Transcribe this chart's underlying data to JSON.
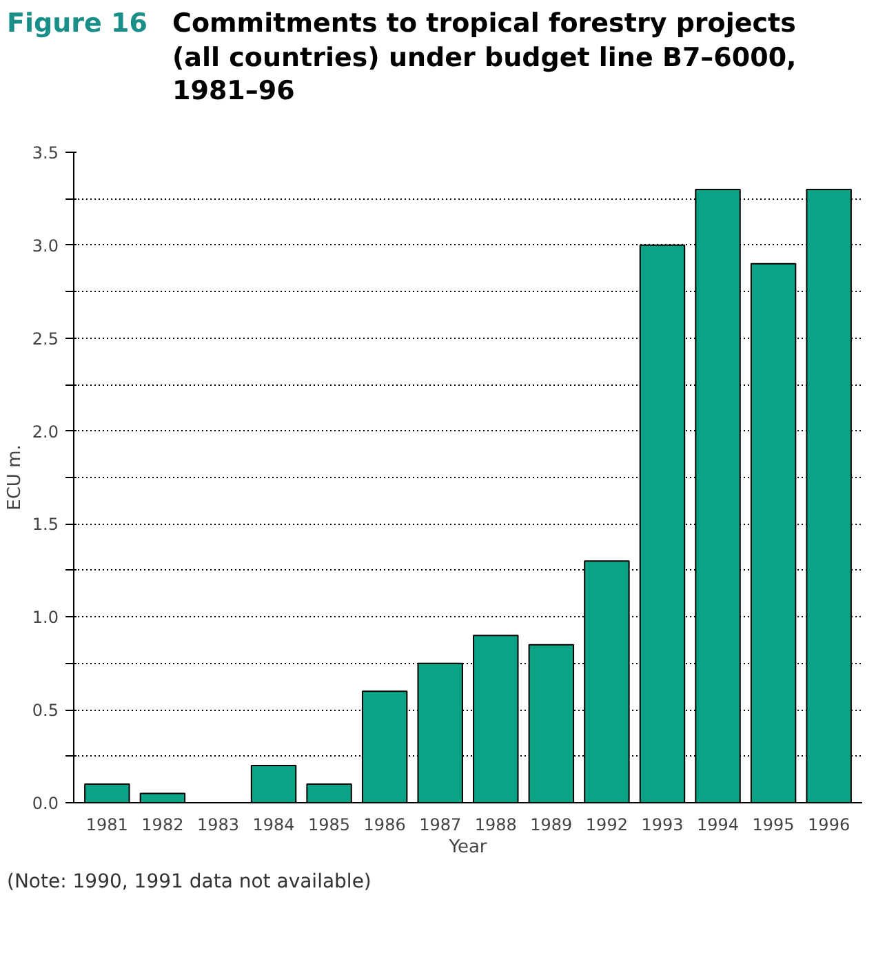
{
  "chart_data": {
    "type": "bar",
    "subtitle": "Figure 16",
    "title": "Commitments to tropical forestry projects (all countries) under budget line B7–6000, 1981–96",
    "xlabel": "Year",
    "ylabel": "ECU m.",
    "categories": [
      "1981",
      "1982",
      "1983",
      "1984",
      "1985",
      "1986",
      "1987",
      "1988",
      "1989",
      "1992",
      "1993",
      "1994",
      "1995",
      "1996"
    ],
    "values": [
      0.1,
      0.05,
      0,
      0.2,
      0.1,
      0.6,
      0.75,
      0.9,
      0.85,
      1.3,
      3.0,
      3.3,
      2.9,
      3.3
    ],
    "color": "#0aa386",
    "ylim": [
      0,
      3.5
    ],
    "yticks": [
      {
        "value": 0,
        "label": "0.0"
      },
      {
        "value": 0.25,
        "label": null
      },
      {
        "value": 0.5,
        "label": "0.5"
      },
      {
        "value": 0.75,
        "label": null
      },
      {
        "value": 1,
        "label": "1.0"
      },
      {
        "value": 1.25,
        "label": null
      },
      {
        "value": 1.5,
        "label": "1.5"
      },
      {
        "value": 1.75,
        "label": null
      },
      {
        "value": 2,
        "label": "2.0"
      },
      {
        "value": 2.25,
        "label": null
      },
      {
        "value": 2.5,
        "label": "2.5"
      },
      {
        "value": 2.75,
        "label": null
      },
      {
        "value": 3,
        "label": "3.0"
      },
      {
        "value": 3.25,
        "label": null
      },
      {
        "value": 3.5,
        "label": "3.5"
      }
    ],
    "grid": "y",
    "annotations": [
      "(Note: 1990, 1991 data not available)"
    ]
  }
}
